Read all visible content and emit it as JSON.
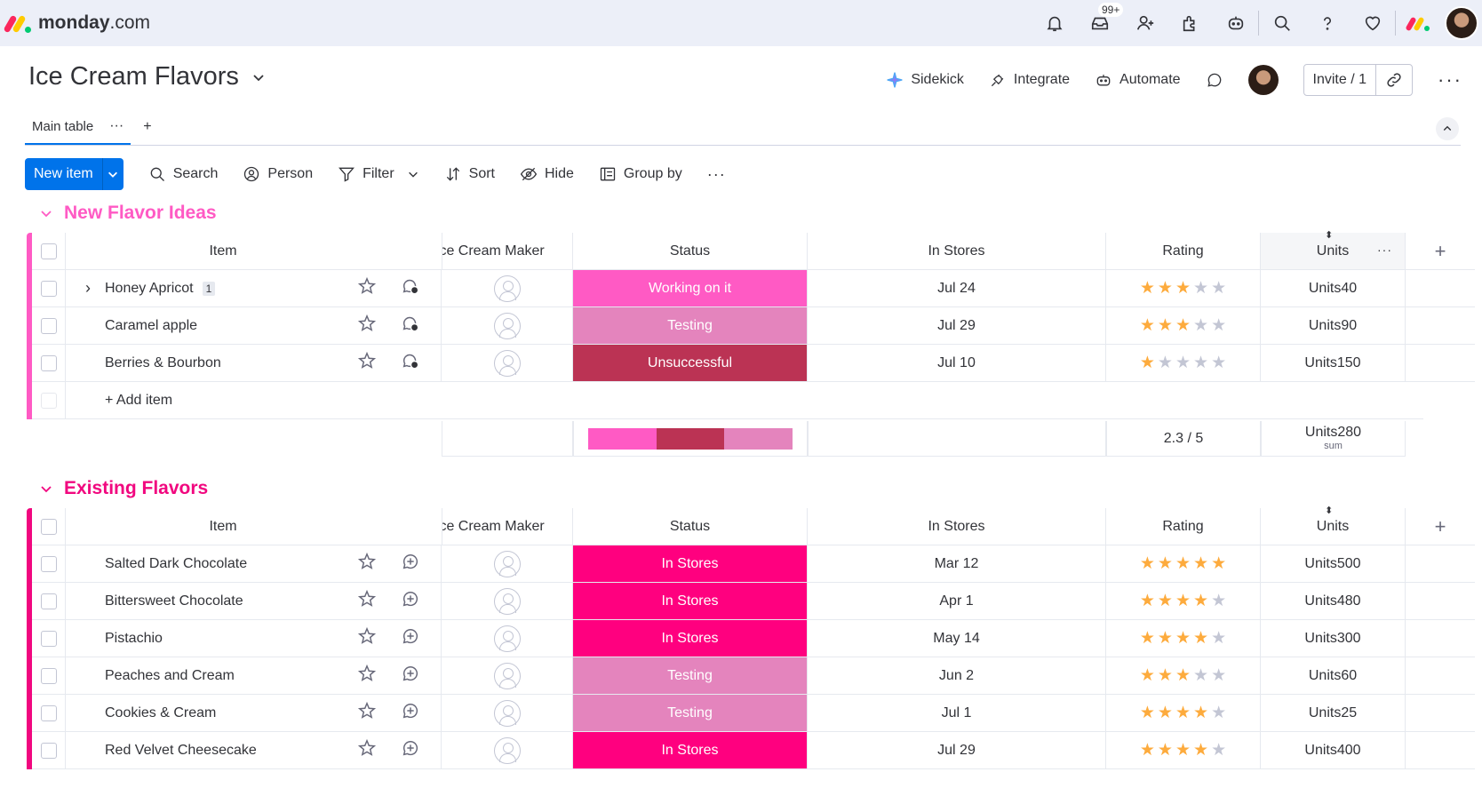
{
  "brand": {
    "name_bold": "monday",
    "name_rest": ".com"
  },
  "topbar": {
    "inbox_badge": "99+",
    "icons": [
      "bell-icon",
      "inbox-icon",
      "invite-members-icon",
      "apps-icon",
      "ai-assistant-icon",
      "search-icon",
      "help-icon",
      "heart-icon",
      "monday-apps-icon"
    ]
  },
  "board": {
    "title": "Ice Cream Flavors",
    "actions": {
      "sidekick": "Sidekick",
      "integrate": "Integrate",
      "automate": "Automate",
      "invite": "Invite / 1"
    },
    "tabs": [
      {
        "label": "Main table",
        "more": "···"
      }
    ],
    "tab_add": "+"
  },
  "toolbar": {
    "new_item": "New item",
    "search": "Search",
    "person": "Person",
    "filter": "Filter",
    "sort": "Sort",
    "hide": "Hide",
    "group_by": "Group by",
    "more": "···"
  },
  "columns": {
    "item": "Item",
    "maker": "Ice Cream Maker",
    "status": "Status",
    "stores": "In Stores",
    "rating": "Rating",
    "units": "Units",
    "add": "+"
  },
  "colors": {
    "working": "#ff5ac4",
    "testing": "#e484bd",
    "unsuccessful": "#bb3354",
    "instores": "#ff007f",
    "group1": "#ff5ac4",
    "group2": "#f1077f",
    "star_on": "#fdab3d",
    "star_off": "#c3c6d4",
    "primary": "#0073ea"
  },
  "groups": [
    {
      "title": "New Flavor Ideas",
      "rows": [
        {
          "name": "Honey Apricot",
          "subitems": "1",
          "status": "Working on it",
          "status_key": "working",
          "stores": "Jul 24",
          "rating": 3,
          "units": "Units40"
        },
        {
          "name": "Caramel apple",
          "subitems": "",
          "status": "Testing",
          "status_key": "testing",
          "stores": "Jul 29",
          "rating": 3,
          "units": "Units90"
        },
        {
          "name": "Berries & Bourbon",
          "subitems": "",
          "status": "Unsuccessful",
          "status_key": "unsuccessful",
          "stores": "Jul 10",
          "rating": 1,
          "units": "Units150"
        }
      ],
      "add_item": "+ Add item",
      "summary": {
        "status_distribution": [
          {
            "key": "working",
            "share": 0.333
          },
          {
            "key": "unsuccessful",
            "share": 0.333
          },
          {
            "key": "testing",
            "share": 0.334
          }
        ],
        "rating": "2.3 / 5",
        "units": "Units280",
        "units_label": "sum"
      }
    },
    {
      "title": "Existing Flavors",
      "rows": [
        {
          "name": "Salted Dark Chocolate",
          "status": "In Stores",
          "status_key": "instores",
          "stores": "Mar 12",
          "rating": 5,
          "units": "Units500"
        },
        {
          "name": "Bittersweet Chocolate",
          "status": "In Stores",
          "status_key": "instores",
          "stores": "Apr 1",
          "rating": 4,
          "units": "Units480"
        },
        {
          "name": "Pistachio",
          "status": "In Stores",
          "status_key": "instores",
          "stores": "May 14",
          "rating": 4,
          "units": "Units300"
        },
        {
          "name": "Peaches and Cream",
          "status": "Testing",
          "status_key": "testing",
          "stores": "Jun 2",
          "rating": 3,
          "units": "Units60"
        },
        {
          "name": "Cookies & Cream",
          "status": "Testing",
          "status_key": "testing",
          "stores": "Jul 1",
          "rating": 4,
          "units": "Units25"
        },
        {
          "name": "Red Velvet Cheesecake",
          "status": "In Stores",
          "status_key": "instores",
          "stores": "Jul 29",
          "rating": 4,
          "units": "Units400"
        }
      ]
    }
  ]
}
